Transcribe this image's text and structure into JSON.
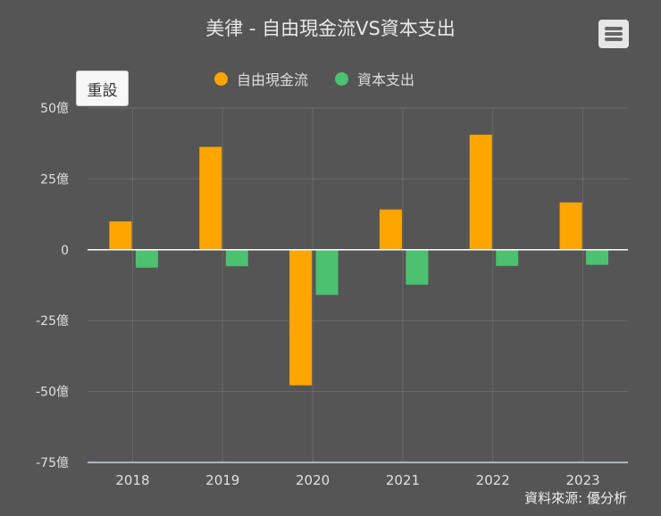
{
  "title": "美律 - 自由現金流VS資本支出",
  "reset_label": "重設",
  "menu_icon": "hamburger-menu-icon",
  "source": "資料來源: 優分析",
  "chart_data": {
    "type": "bar",
    "title": "美律 - 自由現金流VS資本支出",
    "categories": [
      "2018",
      "2019",
      "2020",
      "2021",
      "2022",
      "2023"
    ],
    "series": [
      {
        "name": "自由現金流",
        "color": "#FFA500",
        "values": [
          10.0,
          36.3,
          -47.8,
          14.2,
          40.6,
          16.7
        ]
      },
      {
        "name": "資本支出",
        "color": "#4CC170",
        "values": [
          -6.3,
          -5.8,
          -15.9,
          -12.3,
          -5.7,
          -5.3
        ]
      }
    ],
    "yticks": [
      {
        "value": 50,
        "label": "50億"
      },
      {
        "value": 25,
        "label": "25億"
      },
      {
        "value": 0,
        "label": "0"
      },
      {
        "value": -25,
        "label": "-25億"
      },
      {
        "value": -50,
        "label": "-50億"
      },
      {
        "value": -75,
        "label": "-75億"
      }
    ],
    "ylim": [
      -75,
      50
    ],
    "grid": true,
    "legend": "top-center"
  }
}
